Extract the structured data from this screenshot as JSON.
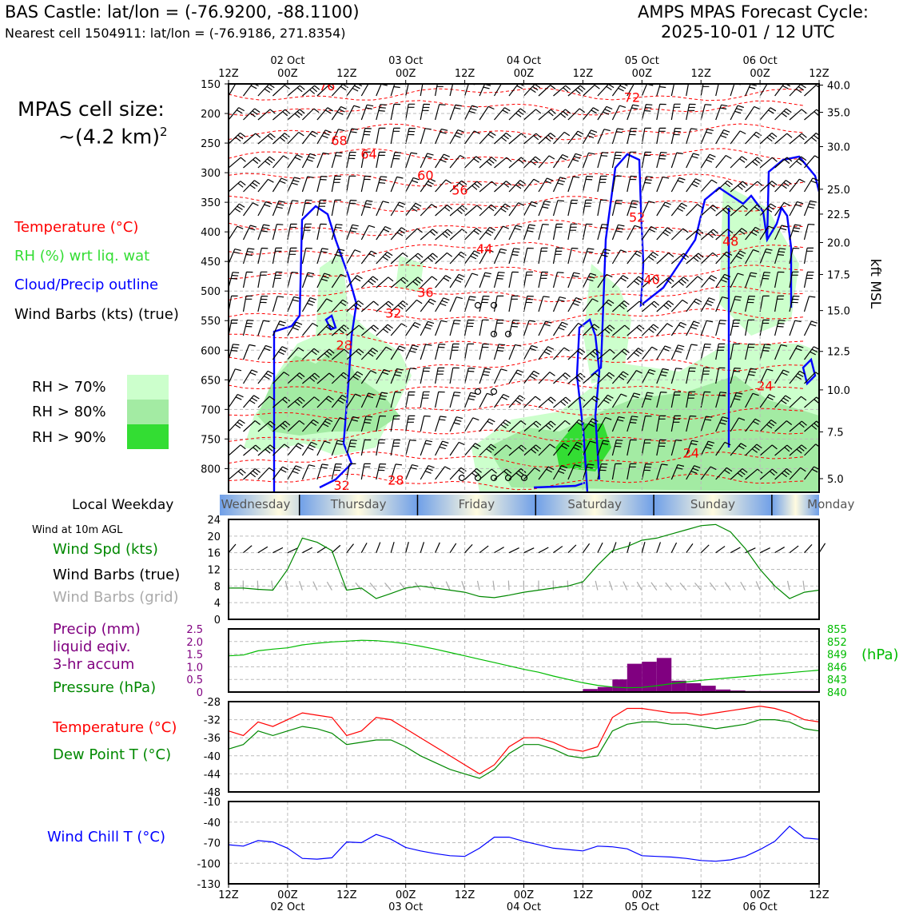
{
  "header": {
    "station_line": "BAS Castle: lat/lon = (-76.9200, -88.1100)",
    "cell_line": "Nearest cell 1504911: lat/lon = (-76.9186, 271.8354)",
    "forecast_title": "AMPS MPAS Forecast Cycle:",
    "forecast_cycle": "2025-10-01 / 12 UTC"
  },
  "cell_size": {
    "label": "MPAS cell size:",
    "value": "~(4.2 km)",
    "exponent": "2"
  },
  "legend": {
    "temperature": "Temperature (°C)",
    "rh": "RH (%) wrt liq. wat",
    "cloud": "Cloud/Precip outline",
    "wind_barbs": "Wind Barbs (kts) (true)",
    "rh70": "RH > 70%",
    "rh80": "RH > 80%",
    "rh90": "RH > 90%",
    "colors": {
      "rh70": "#ccffcc",
      "rh80": "#a3eba3",
      "rh90": "#33dd33"
    }
  },
  "weekday": {
    "label": "Local Weekday",
    "days": [
      "Wednesday",
      "Thursday",
      "Friday",
      "Saturday",
      "Sunday",
      "Monday"
    ]
  },
  "panel_labels": {
    "wind_header": "Wind at 10m AGL",
    "wind_speed": "Wind Spd (kts)",
    "barbs_true": "Wind Barbs (true)",
    "barbs_grid": "Wind Barbs (grid)",
    "precip1": "Precip (mm)",
    "precip2": "liquid eqiv.",
    "precip3": "3-hr accum",
    "pressure": "Pressure (hPa)",
    "pressure_unit": "(hPa)",
    "temperature": "Temperature (°C)",
    "dewpoint": "Dew Point T (°C)",
    "windchill": "Wind Chill T (°C)"
  },
  "chart_data": [
    {
      "type": "heatmap",
      "title": "Time-height cross section",
      "x_hours": [
        0,
        120
      ],
      "x_ticks_top": [
        "12Z",
        "00Z",
        "12Z",
        "00Z",
        "12Z",
        "00Z",
        "12Z",
        "00Z",
        "12Z",
        "00Z",
        "12Z"
      ],
      "x_date_labels": [
        "02 Oct",
        "03 Oct",
        "04 Oct",
        "05 Oct",
        "06 Oct"
      ],
      "y_pressure_ticks": [
        "150",
        "200",
        "250",
        "300",
        "350",
        "400",
        "450",
        "500",
        "550",
        "600",
        "650",
        "700",
        "750",
        "800"
      ],
      "y_pressure_range": [
        150,
        840
      ],
      "right_axis_label": "kft MSL",
      "right_ticks": [
        {
          "p": 152,
          "label": "40.0"
        },
        {
          "p": 198,
          "label": "35.0"
        },
        {
          "p": 256,
          "label": "30.0"
        },
        {
          "p": 328,
          "label": "25.0"
        },
        {
          "p": 370,
          "label": "22.5"
        },
        {
          "p": 418,
          "label": "20.0"
        },
        {
          "p": 472,
          "label": "17.5"
        },
        {
          "p": 533,
          "label": "15.0"
        },
        {
          "p": 602,
          "label": "12.5"
        },
        {
          "p": 667,
          "label": "10.0"
        },
        {
          "p": 738,
          "label": "7.5"
        },
        {
          "p": 817,
          "label": "5.0"
        }
      ],
      "temperature_labels": [
        {
          "t": 20,
          "p": 153,
          "label": "76"
        },
        {
          "t": 22.5,
          "p": 245,
          "label": "68"
        },
        {
          "t": 28.5,
          "p": 268,
          "label": "64"
        },
        {
          "t": 40,
          "p": 304,
          "label": "60"
        },
        {
          "t": 47,
          "p": 329,
          "label": "56"
        },
        {
          "t": 82,
          "p": 172,
          "label": "72"
        },
        {
          "t": 83,
          "p": 375,
          "label": "52"
        },
        {
          "t": 102,
          "p": 415,
          "label": "48"
        },
        {
          "t": 52,
          "p": 428,
          "label": "44"
        },
        {
          "t": 86,
          "p": 480,
          "label": "40"
        },
        {
          "t": 40,
          "p": 502,
          "label": "36"
        },
        {
          "t": 33.5,
          "p": 537,
          "label": "32"
        },
        {
          "t": 23.5,
          "p": 591,
          "label": "28"
        },
        {
          "t": 109,
          "p": 660,
          "label": "24"
        },
        {
          "t": 94,
          "p": 773,
          "label": "24"
        },
        {
          "t": 34,
          "p": 819,
          "label": "28"
        },
        {
          "t": 23,
          "p": 828,
          "label": "32"
        },
        {
          "t": 54,
          "p": 848,
          "label": "32"
        },
        {
          "t": 58,
          "p": 848,
          "label": "36"
        }
      ]
    },
    {
      "type": "line",
      "title": "Wind at 10m AGL",
      "x_hours_step": 3,
      "ylim": [
        0,
        24
      ],
      "y_ticks": [
        "24",
        "20",
        "16",
        "12",
        "8",
        "4",
        "0"
      ],
      "series": [
        {
          "name": "Wind Spd (kts)",
          "color": "#008800",
          "values": [
            7.5,
            7.5,
            7.2,
            7,
            12,
            19.5,
            18.5,
            16.5,
            7,
            7.5,
            5,
            6.2,
            7.5,
            8,
            7.5,
            7,
            6.5,
            5.5,
            5.2,
            5.8,
            6.5,
            7,
            7.5,
            8,
            9,
            13,
            16.5,
            17.5,
            19,
            19.5,
            20.5,
            21.5,
            22.5,
            22.8,
            21,
            17,
            12,
            8,
            5,
            6.5,
            7
          ]
        }
      ]
    },
    {
      "type": "bar",
      "title": "Precip (mm) liquid eqiv. 3-hr accum",
      "ylim": [
        0,
        2.5
      ],
      "y_ticks": [
        "2.5",
        "2.0",
        "1.5",
        "1.0",
        "0.5",
        "0"
      ],
      "bars": [
        {
          "start": 72,
          "end": 75,
          "value": 0.12
        },
        {
          "start": 75,
          "end": 78,
          "value": 0.2
        },
        {
          "start": 78,
          "end": 81,
          "value": 0.5
        },
        {
          "start": 81,
          "end": 84,
          "value": 1.12
        },
        {
          "start": 84,
          "end": 87,
          "value": 1.2
        },
        {
          "start": 87,
          "end": 90,
          "value": 1.35
        },
        {
          "start": 90,
          "end": 93,
          "value": 0.45
        },
        {
          "start": 93,
          "end": 96,
          "value": 0.35
        },
        {
          "start": 96,
          "end": 99,
          "value": 0.25
        },
        {
          "start": 99,
          "end": 102,
          "value": 0.1
        },
        {
          "start": 102,
          "end": 105,
          "value": 0.06
        },
        {
          "start": 105,
          "end": 120,
          "value": 0.04
        }
      ],
      "pressure_series": {
        "name": "Pressure (hPa)",
        "color": "#00bb00",
        "ylim": [
          840,
          855
        ],
        "y_ticks": [
          "855",
          "852",
          "849",
          "846",
          "843",
          "840"
        ],
        "values": [
          848.6,
          848.8,
          849.8,
          850.2,
          850.5,
          851.2,
          851.6,
          851.9,
          852.1,
          852.3,
          852.2,
          851.9,
          851.5,
          850.9,
          850.2,
          849.4,
          848.6,
          847.8,
          847,
          846.2,
          845.4,
          844.7,
          843.8,
          843,
          842.2,
          841.6,
          841.2,
          841,
          841.1,
          841.5,
          842,
          842.4,
          842.8,
          843.1,
          843.4,
          843.7,
          844,
          844.3,
          844.6,
          844.9,
          845.2
        ]
      }
    },
    {
      "type": "line",
      "title": "Temperature / Dew Point",
      "ylim": [
        -48,
        -28
      ],
      "y_ticks": [
        "-28",
        "-32",
        "-36",
        "-40",
        "-44",
        "-48"
      ],
      "series": [
        {
          "name": "Temperature (°C)",
          "color": "#ff0000",
          "values": [
            -34.5,
            -35.5,
            -32.5,
            -33.5,
            -32,
            -30.5,
            -31,
            -31.5,
            -35.5,
            -34.5,
            -31.5,
            -32,
            -34,
            -36,
            -38,
            -40,
            -42,
            -44,
            -42,
            -38,
            -36,
            -36,
            -37,
            -38.5,
            -39,
            -38,
            -31.5,
            -29.5,
            -29.5,
            -30,
            -30.5,
            -30.5,
            -31,
            -30.5,
            -30,
            -29.5,
            -29,
            -29.5,
            -30.5,
            -32,
            -32.5
          ]
        },
        {
          "name": "Dew Point T (°C)",
          "color": "#008800",
          "values": [
            -38.5,
            -37.5,
            -34.5,
            -35.5,
            -34.5,
            -33.5,
            -34,
            -35,
            -37.5,
            -37,
            -36.5,
            -36.5,
            -38,
            -40,
            -41.5,
            -43,
            -44,
            -45,
            -43,
            -39.5,
            -37.5,
            -37.5,
            -38.5,
            -40,
            -40.5,
            -40,
            -34.5,
            -33,
            -32.5,
            -32.5,
            -33,
            -33,
            -33.5,
            -34,
            -33.5,
            -33,
            -32,
            -32,
            -32.5,
            -34,
            -34.5
          ]
        }
      ]
    },
    {
      "type": "line",
      "title": "Wind Chill T",
      "ylim": [
        -130,
        -10
      ],
      "y_ticks": [
        "-10",
        "-40",
        "-70",
        "-100",
        "-130"
      ],
      "series": [
        {
          "name": "Wind Chill T (°C)",
          "color": "#0000ff",
          "values": [
            -73,
            -75,
            -67,
            -69,
            -78,
            -93,
            -94,
            -92,
            -69,
            -70,
            -58,
            -65,
            -77,
            -82,
            -86,
            -89,
            -90,
            -78,
            -62,
            -62,
            -68,
            -73,
            -78,
            -80,
            -82,
            -75,
            -76,
            -79,
            -89,
            -90,
            -91,
            -93,
            -96,
            -97,
            -95,
            -90,
            -80,
            -68,
            -46,
            -63,
            -65
          ]
        }
      ]
    }
  ]
}
